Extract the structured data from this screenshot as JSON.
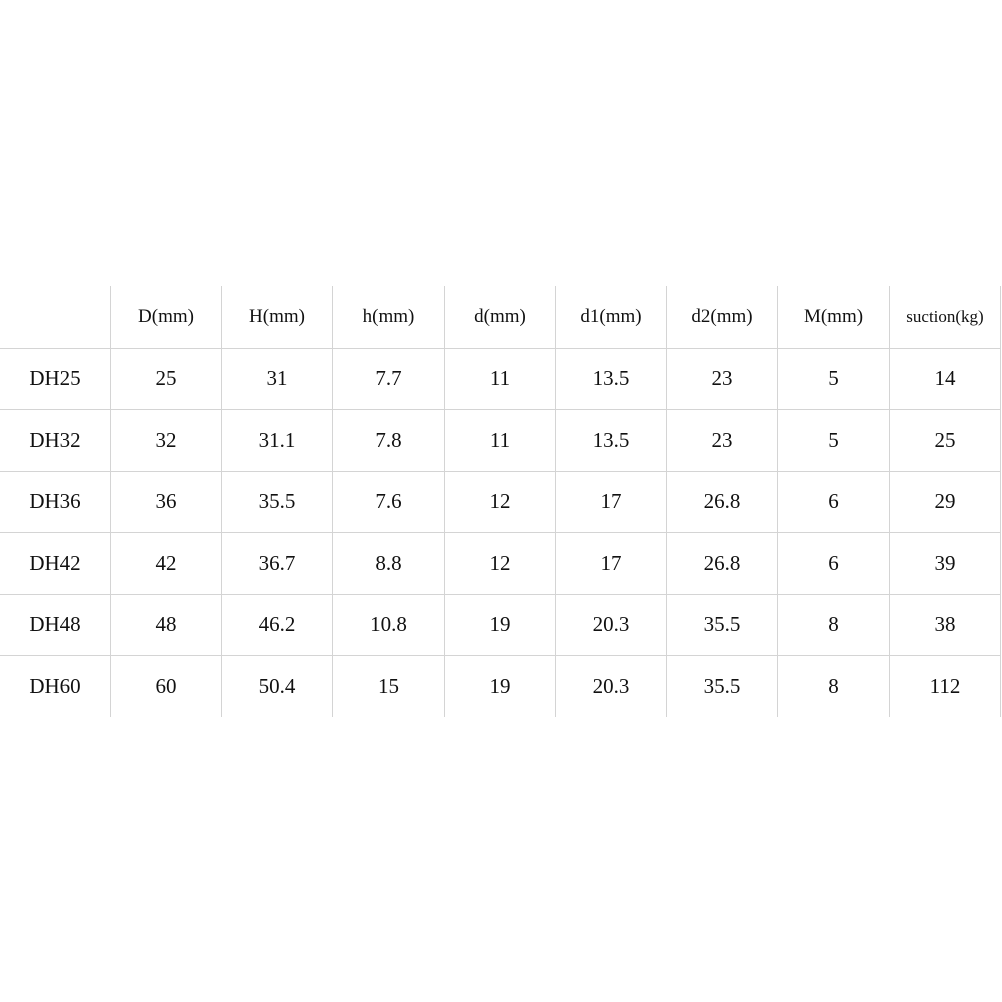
{
  "table": {
    "headers": [
      "",
      "D(mm)",
      "H(mm)",
      "h(mm)",
      "d(mm)",
      "d1(mm)",
      "d2(mm)",
      "M(mm)",
      "suction(kg)"
    ],
    "rows": [
      [
        "DH25",
        "25",
        "31",
        "7.7",
        "11",
        "13.5",
        "23",
        "5",
        "14"
      ],
      [
        "DH32",
        "32",
        "31.1",
        "7.8",
        "11",
        "13.5",
        "23",
        "5",
        "25"
      ],
      [
        "DH36",
        "36",
        "35.5",
        "7.6",
        "12",
        "17",
        "26.8",
        "6",
        "29"
      ],
      [
        "DH42",
        "42",
        "36.7",
        "8.8",
        "12",
        "17",
        "26.8",
        "6",
        "39"
      ],
      [
        "DH48",
        "48",
        "46.2",
        "10.8",
        "19",
        "20.3",
        "35.5",
        "8",
        "38"
      ],
      [
        "DH60",
        "60",
        "50.4",
        "15",
        "19",
        "20.3",
        "35.5",
        "8",
        "112"
      ]
    ]
  }
}
